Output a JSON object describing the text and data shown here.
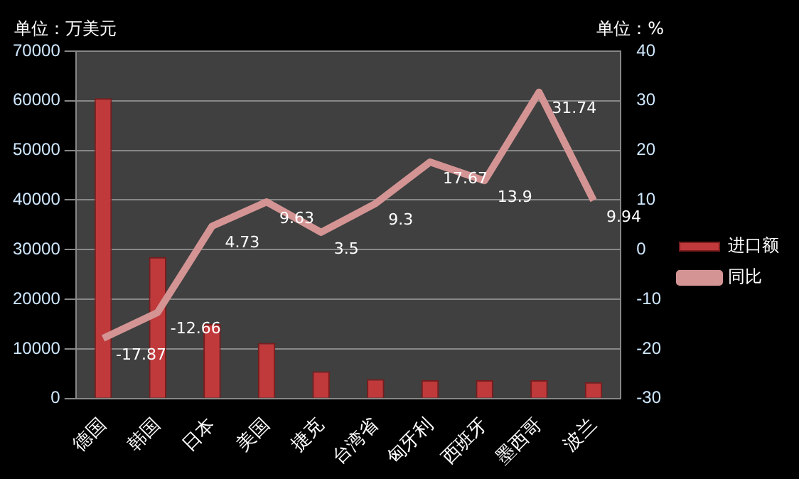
{
  "chart_data": {
    "type": "bar",
    "ylabel": "单位：万美元",
    "y2label": "单位：%",
    "categories": [
      "德国",
      "韩国",
      "日本",
      "美国",
      "捷克",
      "台湾省",
      "匈牙利",
      "西班牙",
      "墨西哥",
      "波兰"
    ],
    "series": [
      {
        "name": "进口额",
        "color": "#c0393b",
        "values": [
          60500,
          28500,
          15000,
          11200,
          5500,
          3900,
          3700,
          3700,
          3700,
          3300
        ]
      },
      {
        "name": "同比",
        "type": "line",
        "axis": "y2",
        "color": "#d49494",
        "values": [
          -17.87,
          -12.66,
          4.73,
          9.63,
          3.5,
          9.3,
          17.67,
          13.9,
          31.74,
          9.94
        ],
        "value_labels": [
          "-17.87",
          "-12.66",
          "4.73",
          "9.63",
          "3.5",
          "9.3",
          "17.67",
          "13.9",
          "31.74",
          "9.94"
        ]
      }
    ],
    "ylim": [
      0,
      70000
    ],
    "yticks": [
      0,
      10000,
      20000,
      30000,
      40000,
      50000,
      60000,
      70000
    ],
    "y2lim": [
      -30,
      40
    ],
    "y2ticks": [
      -30,
      -20,
      -10,
      0,
      10,
      20,
      30,
      40
    ],
    "grid": "y",
    "legend": "right",
    "marker": "none"
  }
}
